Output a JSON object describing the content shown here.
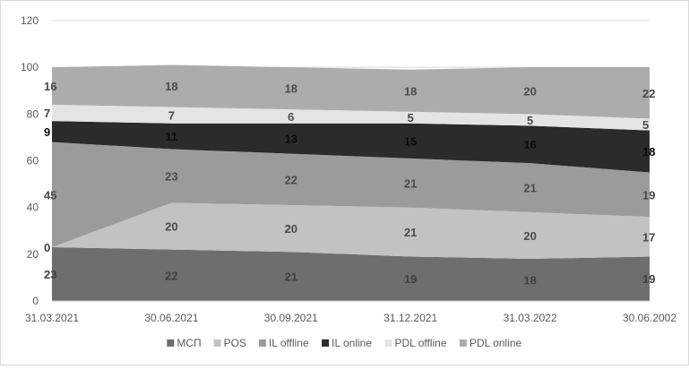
{
  "chart_data": {
    "type": "area",
    "stacked": true,
    "categories": [
      "31.03.2021",
      "30.06.2021",
      "30.09.2021",
      "31.12.2021",
      "31.03.2022",
      "30.06.2002"
    ],
    "ylim": [
      0,
      120
    ],
    "yticks": [
      "0",
      "20",
      "40",
      "60",
      "80",
      "100",
      "120"
    ],
    "grid": "horizontal",
    "legend_position": "bottom",
    "series": [
      {
        "name": "МСП",
        "values": [
          23,
          22,
          21,
          19,
          18,
          19
        ],
        "color": "#6e6e6e",
        "label_color": "#3f3f3f"
      },
      {
        "name": "POS",
        "values": [
          0,
          20,
          20,
          21,
          20,
          17
        ],
        "color": "#c2c2c2",
        "label_color": "#4a4a4a"
      },
      {
        "name": "IL offline",
        "values": [
          45,
          23,
          22,
          21,
          21,
          19
        ],
        "color": "#9b9b9b",
        "label_color": "#4a4a4a"
      },
      {
        "name": "IL online",
        "values": [
          9,
          11,
          13,
          15,
          16,
          18
        ],
        "color": "#2b2b2b",
        "label_color": "#0a0a0a"
      },
      {
        "name": "PDL offline",
        "values": [
          7,
          7,
          6,
          5,
          5,
          5
        ],
        "color": "#e4e4e4",
        "label_color": "#4a4a4a"
      },
      {
        "name": "PDL online",
        "values": [
          16,
          18,
          18,
          18,
          20,
          22
        ],
        "color": "#acacac",
        "label_color": "#4a4a4a"
      }
    ]
  }
}
